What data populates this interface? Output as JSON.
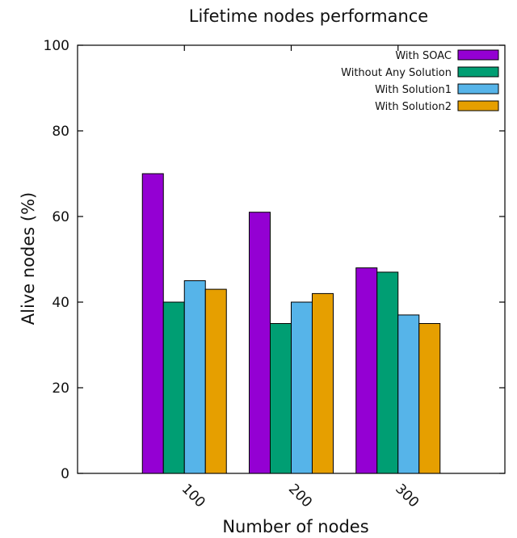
{
  "chart_data": {
    "type": "bar",
    "title": "Lifetime nodes performance",
    "xlabel": "Number of nodes",
    "ylabel": "Alive nodes (%)",
    "categories": [
      "100",
      "200",
      "300"
    ],
    "ylim": [
      0,
      100
    ],
    "yticks": [
      "0",
      "20",
      "40",
      "60",
      "80",
      "100"
    ],
    "grid": false,
    "legend_position": "top-right",
    "series": [
      {
        "name": "With SOAC",
        "color": "#9400d3",
        "values": [
          70,
          61,
          48
        ]
      },
      {
        "name": "Without Any Solution",
        "color": "#009e73",
        "values": [
          40,
          35,
          47
        ]
      },
      {
        "name": "With Solution1",
        "color": "#56b4e9",
        "values": [
          45,
          40,
          37
        ]
      },
      {
        "name": "With Solution2",
        "color": "#e69f00",
        "values": [
          43,
          42,
          35
        ]
      }
    ]
  }
}
